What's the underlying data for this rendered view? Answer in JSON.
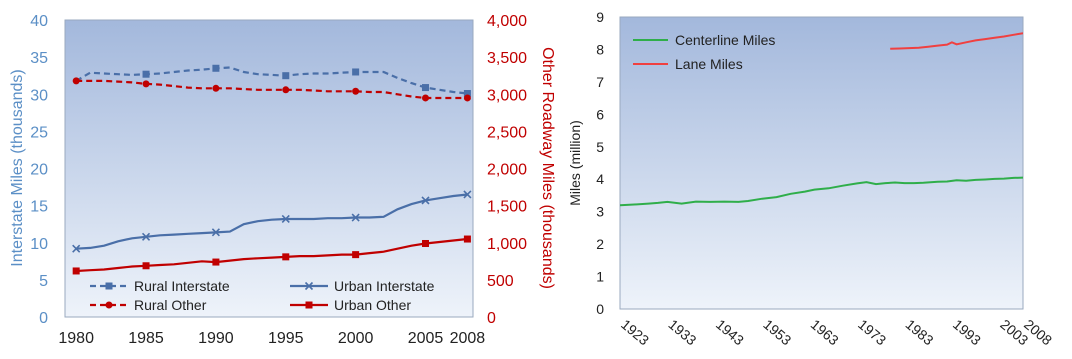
{
  "chart_data": [
    {
      "type": "line",
      "title": "",
      "xlabel": "",
      "ylabel": "Interstate Miles (thousands)",
      "y2label": "Other Roadway Miles (thousands)",
      "xlim": [
        1980,
        2008
      ],
      "ylim": [
        0,
        40
      ],
      "y2lim": [
        0,
        4000
      ],
      "x_ticks": [
        "1980",
        "1985",
        "1990",
        "1995",
        "2000",
        "2005",
        "2008"
      ],
      "y_ticks": [
        "0",
        "5",
        "10",
        "15",
        "20",
        "25",
        "30",
        "35",
        "40"
      ],
      "y2_ticks": [
        "0",
        "500",
        "1,000",
        "1,500",
        "2,000",
        "2,500",
        "3,000",
        "3,500",
        "4,000"
      ],
      "grid": false,
      "background": "gradient-blue",
      "legend": "bottom-inside",
      "series": [
        {
          "name": "Rural Interstate",
          "axis": "left",
          "color": "#4a6fa8",
          "style": "dashed",
          "marker": "square",
          "x": [
            1980,
            1981,
            1982,
            1983,
            1984,
            1985,
            1986,
            1987,
            1988,
            1989,
            1990,
            1991,
            1992,
            1993,
            1994,
            1995,
            1996,
            1997,
            1998,
            1999,
            2000,
            2001,
            2002,
            2003,
            2004,
            2005,
            2006,
            2007,
            2008
          ],
          "y": [
            31.8,
            32.9,
            32.8,
            32.7,
            32.6,
            32.7,
            32.8,
            33.0,
            33.2,
            33.3,
            33.5,
            33.6,
            33.0,
            32.7,
            32.6,
            32.5,
            32.7,
            32.8,
            32.8,
            32.9,
            33.0,
            33.0,
            33.0,
            32.2,
            31.5,
            30.9,
            30.6,
            30.3,
            30.1
          ],
          "marker_x": [
            1985,
            1990,
            1995,
            2000,
            2005,
            2008
          ]
        },
        {
          "name": "Urban Interstate",
          "axis": "left",
          "color": "#4a6fa8",
          "style": "solid",
          "marker": "x",
          "x": [
            1980,
            1981,
            1982,
            1983,
            1984,
            1985,
            1986,
            1987,
            1988,
            1989,
            1990,
            1991,
            1992,
            1993,
            1994,
            1995,
            1996,
            1997,
            1998,
            1999,
            2000,
            2001,
            2002,
            2003,
            2004,
            2005,
            2006,
            2007,
            2008
          ],
          "y": [
            9.2,
            9.3,
            9.6,
            10.2,
            10.6,
            10.8,
            11.0,
            11.1,
            11.2,
            11.3,
            11.4,
            11.5,
            12.5,
            12.9,
            13.1,
            13.2,
            13.2,
            13.2,
            13.3,
            13.3,
            13.4,
            13.4,
            13.5,
            14.5,
            15.2,
            15.7,
            16.0,
            16.3,
            16.5
          ],
          "marker_x": [
            1980,
            1985,
            1990,
            1995,
            2000,
            2005,
            2008
          ]
        },
        {
          "name": "Rural Other",
          "axis": "right",
          "color": "#c00000",
          "style": "dashed",
          "marker": "circle",
          "x": [
            1980,
            1981,
            1982,
            1983,
            1984,
            1985,
            1986,
            1987,
            1988,
            1989,
            1990,
            1991,
            1992,
            1993,
            1994,
            1995,
            1996,
            1997,
            1998,
            1999,
            2000,
            2001,
            2002,
            2003,
            2004,
            2005,
            2006,
            2007,
            2008
          ],
          "y": [
            3180,
            3180,
            3180,
            3170,
            3160,
            3140,
            3130,
            3110,
            3090,
            3080,
            3080,
            3080,
            3070,
            3060,
            3060,
            3060,
            3060,
            3050,
            3040,
            3040,
            3040,
            3030,
            3030,
            3000,
            2970,
            2950,
            2950,
            2950,
            2950
          ],
          "marker_x": [
            1980,
            1985,
            1990,
            1995,
            2000,
            2005,
            2008
          ]
        },
        {
          "name": "Urban Other",
          "axis": "right",
          "color": "#c00000",
          "style": "solid",
          "marker": "square",
          "x": [
            1980,
            1981,
            1982,
            1983,
            1984,
            1985,
            1986,
            1987,
            1988,
            1989,
            1990,
            1991,
            1992,
            1993,
            1994,
            1995,
            1996,
            1997,
            1998,
            1999,
            2000,
            2001,
            2002,
            2003,
            2004,
            2005,
            2006,
            2007,
            2008
          ],
          "y": [
            620,
            630,
            640,
            660,
            680,
            690,
            700,
            710,
            730,
            750,
            740,
            760,
            780,
            790,
            800,
            810,
            820,
            820,
            830,
            840,
            840,
            860,
            880,
            920,
            960,
            990,
            1010,
            1030,
            1050
          ],
          "marker_x": [
            1980,
            1985,
            1990,
            1995,
            2000,
            2005,
            2008
          ]
        }
      ]
    },
    {
      "type": "line",
      "title": "",
      "xlabel": "",
      "ylabel": "Miles (million)",
      "xlim": [
        1923,
        2008
      ],
      "ylim": [
        0,
        9
      ],
      "x_ticks": [
        "1923",
        "1933",
        "1943",
        "1953",
        "1963",
        "1973",
        "1983",
        "1993",
        "2003",
        "2008"
      ],
      "x_tick_values": [
        1923,
        1933,
        1943,
        1953,
        1963,
        1973,
        1983,
        1993,
        2003,
        2008
      ],
      "y_ticks": [
        "0",
        "1",
        "2",
        "3",
        "4",
        "5",
        "6",
        "7",
        "8",
        "9"
      ],
      "grid": false,
      "background": "gradient-blue",
      "legend": "top-left",
      "series": [
        {
          "name": "Centerline Miles",
          "color": "#2fae4a",
          "x": [
            1923,
            1926,
            1929,
            1931,
            1933,
            1936,
            1939,
            1942,
            1945,
            1948,
            1950,
            1953,
            1956,
            1959,
            1962,
            1964,
            1967,
            1970,
            1973,
            1975,
            1977,
            1979,
            1981,
            1983,
            1985,
            1987,
            1990,
            1992,
            1994,
            1996,
            1998,
            2000,
            2002,
            2004,
            2006,
            2008
          ],
          "y": [
            3.2,
            3.22,
            3.25,
            3.27,
            3.3,
            3.25,
            3.31,
            3.3,
            3.31,
            3.3,
            3.33,
            3.4,
            3.45,
            3.55,
            3.62,
            3.68,
            3.72,
            3.8,
            3.87,
            3.91,
            3.85,
            3.88,
            3.9,
            3.88,
            3.88,
            3.89,
            3.92,
            3.93,
            3.97,
            3.95,
            3.98,
            3.99,
            4.01,
            4.02,
            4.04,
            4.05
          ]
        },
        {
          "name": "Lane Miles",
          "color": "#f04040",
          "x": [
            1980,
            1982,
            1984,
            1986,
            1988,
            1990,
            1992,
            1993,
            1994,
            1996,
            1998,
            2000,
            2002,
            2004,
            2006,
            2008
          ],
          "y": [
            8.02,
            8.03,
            8.04,
            8.05,
            8.08,
            8.12,
            8.15,
            8.22,
            8.16,
            8.22,
            8.28,
            8.32,
            8.36,
            8.4,
            8.45,
            8.5
          ]
        }
      ]
    }
  ]
}
